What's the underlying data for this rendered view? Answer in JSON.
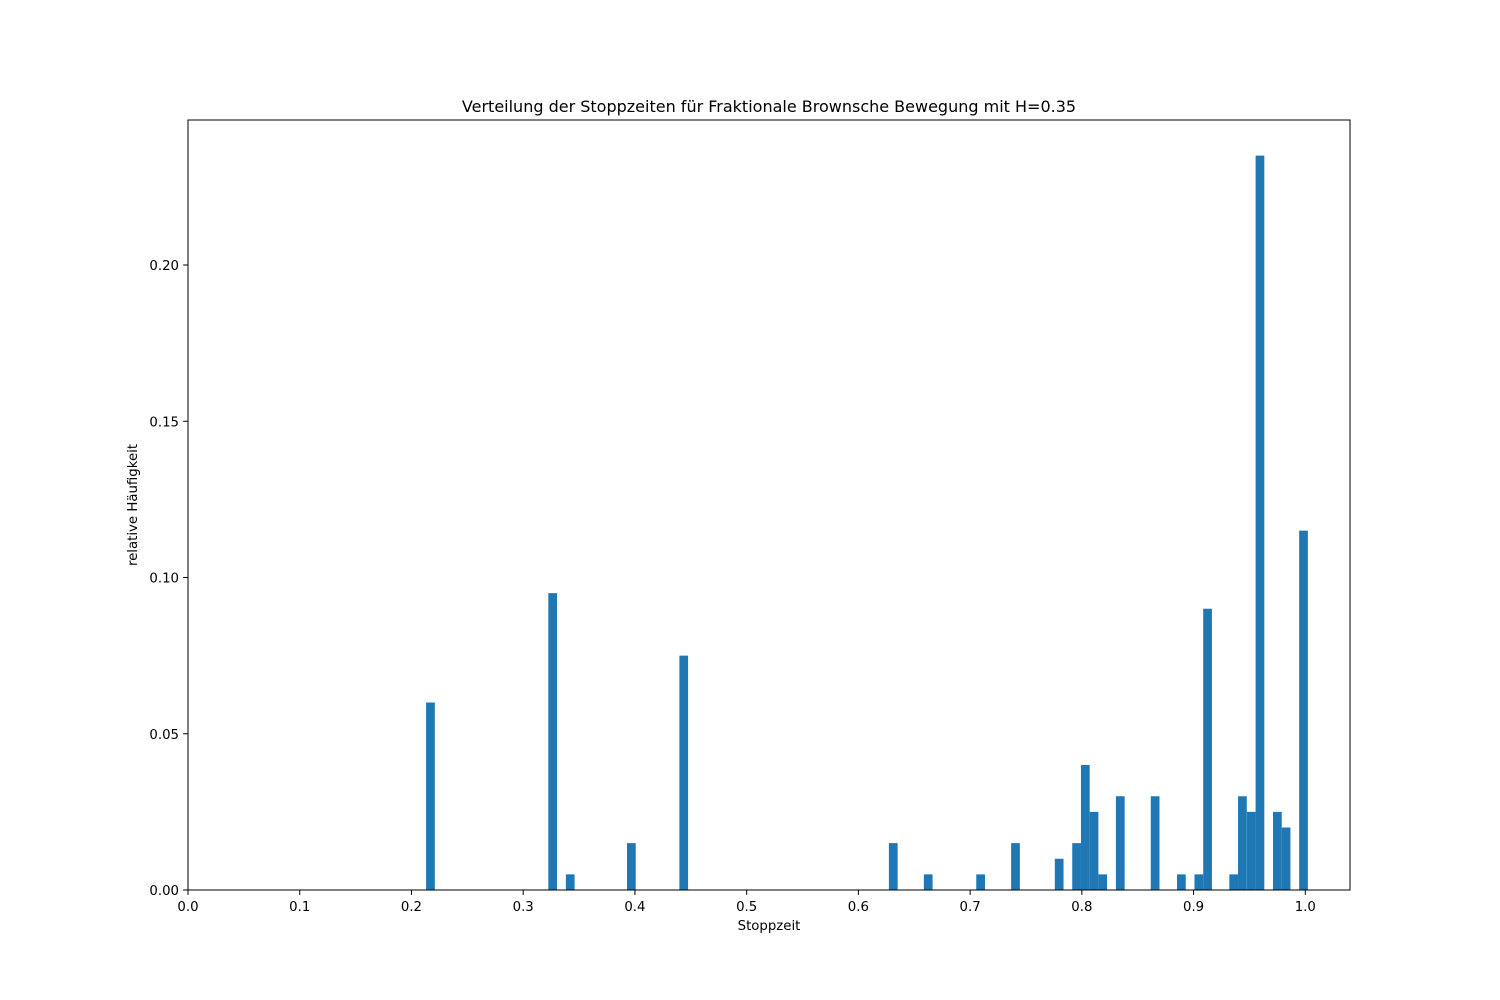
{
  "chart_data": {
    "type": "bar",
    "title": "Verteilung der Stoppzeiten für Fraktionale Brownsche Bewegung mit H=0.35",
    "xlabel": "Stoppzeit",
    "ylabel": "relative Häufigkeit",
    "xlim": [
      0.0,
      1.04
    ],
    "ylim": [
      0.0,
      0.2464
    ],
    "bin_width": 0.0078,
    "x_ticks": [
      "0.0",
      "0.1",
      "0.2",
      "0.3",
      "0.4",
      "0.5",
      "0.6",
      "0.7",
      "0.8",
      "0.9",
      "1.0"
    ],
    "y_ticks": [
      "0.00",
      "0.05",
      "0.10",
      "0.15",
      "0.20"
    ],
    "grid": false,
    "color": "#1f77b4",
    "bars": [
      {
        "x": 0.2131,
        "value": 0.06
      },
      {
        "x": 0.3225,
        "value": 0.095
      },
      {
        "x": 0.3382,
        "value": 0.005
      },
      {
        "x": 0.3929,
        "value": 0.015
      },
      {
        "x": 0.4398,
        "value": 0.075
      },
      {
        "x": 0.6273,
        "value": 0.015
      },
      {
        "x": 0.6586,
        "value": 0.005
      },
      {
        "x": 0.7055,
        "value": 0.005
      },
      {
        "x": 0.7367,
        "value": 0.015
      },
      {
        "x": 0.7758,
        "value": 0.01
      },
      {
        "x": 0.7914,
        "value": 0.015
      },
      {
        "x": 0.7992,
        "value": 0.04
      },
      {
        "x": 0.807,
        "value": 0.025
      },
      {
        "x": 0.8148,
        "value": 0.005
      },
      {
        "x": 0.8305,
        "value": 0.03
      },
      {
        "x": 0.8617,
        "value": 0.03
      },
      {
        "x": 0.8852,
        "value": 0.005
      },
      {
        "x": 0.9008,
        "value": 0.005
      },
      {
        "x": 0.9086,
        "value": 0.09
      },
      {
        "x": 0.932,
        "value": 0.005
      },
      {
        "x": 0.9398,
        "value": 0.03
      },
      {
        "x": 0.9477,
        "value": 0.025
      },
      {
        "x": 0.9555,
        "value": 0.235
      },
      {
        "x": 0.9711,
        "value": 0.025
      },
      {
        "x": 0.9789,
        "value": 0.02
      },
      {
        "x": 0.9945,
        "value": 0.115
      }
    ]
  }
}
